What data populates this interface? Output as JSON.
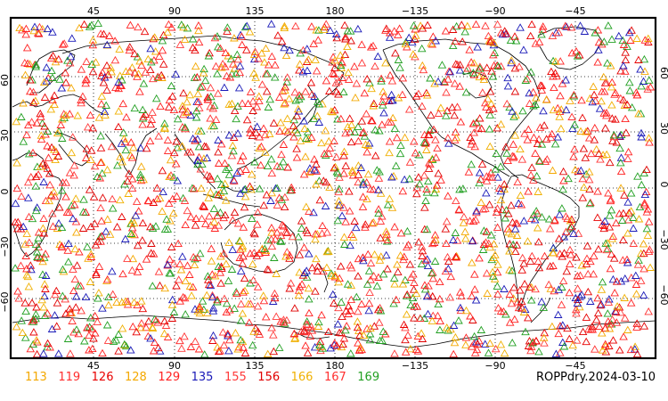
{
  "map": {
    "title": "ROPPdry.2024-03-10",
    "longitude_ticks": [
      "45",
      "90",
      "135",
      "180",
      "−135",
      "−90",
      "−45"
    ],
    "latitude_ticks": [
      "60",
      "30",
      "0",
      "−30",
      "−60"
    ],
    "projection": "cylindrical equidistant, centered on 180",
    "grid": "dotted every 45° longitude and 30° latitude",
    "marker": "open triangle",
    "satellite_ids": [
      {
        "id": "113",
        "color": "#f4a800"
      },
      {
        "id": "119",
        "color": "#ff2e2e"
      },
      {
        "id": "126",
        "color": "#e80000"
      },
      {
        "id": "128",
        "color": "#f4a800"
      },
      {
        "id": "129",
        "color": "#ff2020"
      },
      {
        "id": "135",
        "color": "#1a1ab8"
      },
      {
        "id": "155",
        "color": "#ff3a3a"
      },
      {
        "id": "156",
        "color": "#e00000"
      },
      {
        "id": "166",
        "color": "#f0b000"
      },
      {
        "id": "167",
        "color": "#ff3030"
      },
      {
        "id": "169",
        "color": "#22a022"
      }
    ]
  }
}
